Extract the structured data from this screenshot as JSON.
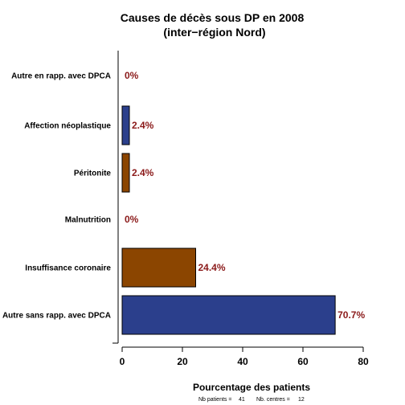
{
  "chart_data": {
    "type": "bar",
    "orientation": "horizontal",
    "title": [
      "Causes de décès sous DP en 2008",
      "(inter−région Nord)"
    ],
    "xlabel": "Pourcentage des patients",
    "ylabel": "",
    "xlim": [
      0,
      80
    ],
    "xticks": [
      "0",
      "20",
      "40",
      "60",
      "80"
    ],
    "grid": false,
    "categories": [
      "Autre en rapp. avec DPCA",
      "Affection néoplastique",
      "Péritonite",
      "Malnutrition",
      "Insuffisance coronaire",
      "Autre sans rapp. avec DPCA"
    ],
    "values": [
      0,
      2.4,
      2.4,
      0,
      24.4,
      70.7
    ],
    "value_labels": [
      "0%",
      "2.4%",
      "2.4%",
      "0%",
      "24.4%",
      "70.7%"
    ],
    "bar_colors": [
      "#2b3f8c",
      "#2b3f8c",
      "#8b4500",
      "#8b4500",
      "#8b4500",
      "#2b3f8c"
    ],
    "label_color": "#8b1a1a"
  },
  "footer": {
    "nb_patients_label": "Nb patients =",
    "nb_patients": "41",
    "nb_centres_label": "Nb. centres =",
    "nb_centres": "12"
  }
}
